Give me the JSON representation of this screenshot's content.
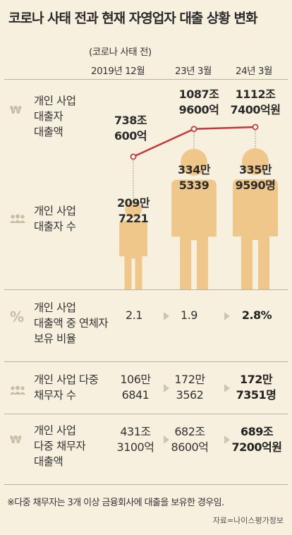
{
  "title": "코로나 사태 전과 현재 자영업자 대출 상황 변화",
  "header": {
    "pre_covid_note": "(코로나 사태 전)",
    "periods": [
      "2019년 12월",
      "23년 3월",
      "24년 3월"
    ]
  },
  "chart_data": [
    {
      "type": "line",
      "label": "개인 사업\n대출자\n대출액",
      "x": [
        "2019년 12월",
        "23년 3월",
        "24년 3월"
      ],
      "values": [
        738.06,
        1087.96,
        1112.74
      ],
      "unit": "조원",
      "value_labels": [
        "738조\n600억",
        "1087조\n9600억",
        "1112조\n7400억원"
      ],
      "line_color": "#c4373a"
    },
    {
      "type": "bar",
      "label": "개인 사업\n대출자 수",
      "categories": [
        "2019년 12월",
        "23년 3월",
        "24년 3월"
      ],
      "values": [
        2097221,
        3345339,
        3359590
      ],
      "value_labels": [
        "209만\n7221",
        "334만\n5339",
        "335만\n9590명"
      ],
      "person_color": "#f0c78a"
    }
  ],
  "rows": [
    {
      "label": "개인 사업\n대출액 중 연체자\n보유 비율",
      "icon": "%",
      "values": [
        "2.1",
        "1.9",
        "2.8%"
      ],
      "numeric": [
        2.1,
        1.9,
        2.8
      ]
    },
    {
      "label": "개인 사업 다중\n채무자 수",
      "icon": "people",
      "values": [
        "106만\n6841",
        "172만\n3562",
        "172만\n7351명"
      ],
      "numeric": [
        1066841,
        1723562,
        1727351
      ]
    },
    {
      "label": "개인 사업\n다중 채무자\n대출액",
      "icon": "₩",
      "values": [
        "431조\n3100억",
        "682조\n8600억",
        "689조\n7200억원"
      ],
      "numeric": [
        431.31,
        682.86,
        689.72
      ]
    }
  ],
  "footnote": "※다중 채무자는 3개 이상 금융회사에 대출을 보유한 경우임.",
  "source": "자료=나이스평가정보",
  "colors": {
    "background": "#f7f0df",
    "accent_line": "#c4373a",
    "figure": "#f0c78a",
    "icon": "#c8bca3"
  }
}
